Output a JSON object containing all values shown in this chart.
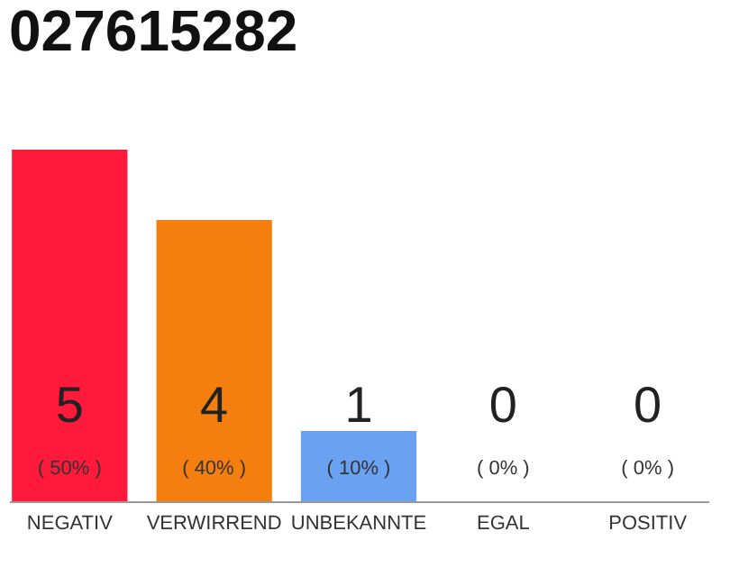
{
  "chart_data": {
    "type": "bar",
    "title": "027615282",
    "categories": [
      "NEGATIV",
      "VERWIRREND",
      "UNBEKANNTE",
      "EGAL",
      "POSITIV"
    ],
    "values": [
      5,
      4,
      1,
      0,
      0
    ],
    "colors": [
      "#ff1a3c",
      "#f47f0e",
      "#6aa1f0",
      "#eeeeee",
      "#eeeeee"
    ],
    "data_labels": true,
    "annotations": [
      "( 50% )",
      "( 40% )",
      "( 10% )",
      "( 0% )",
      "( 0% )"
    ],
    "grid": false
  }
}
